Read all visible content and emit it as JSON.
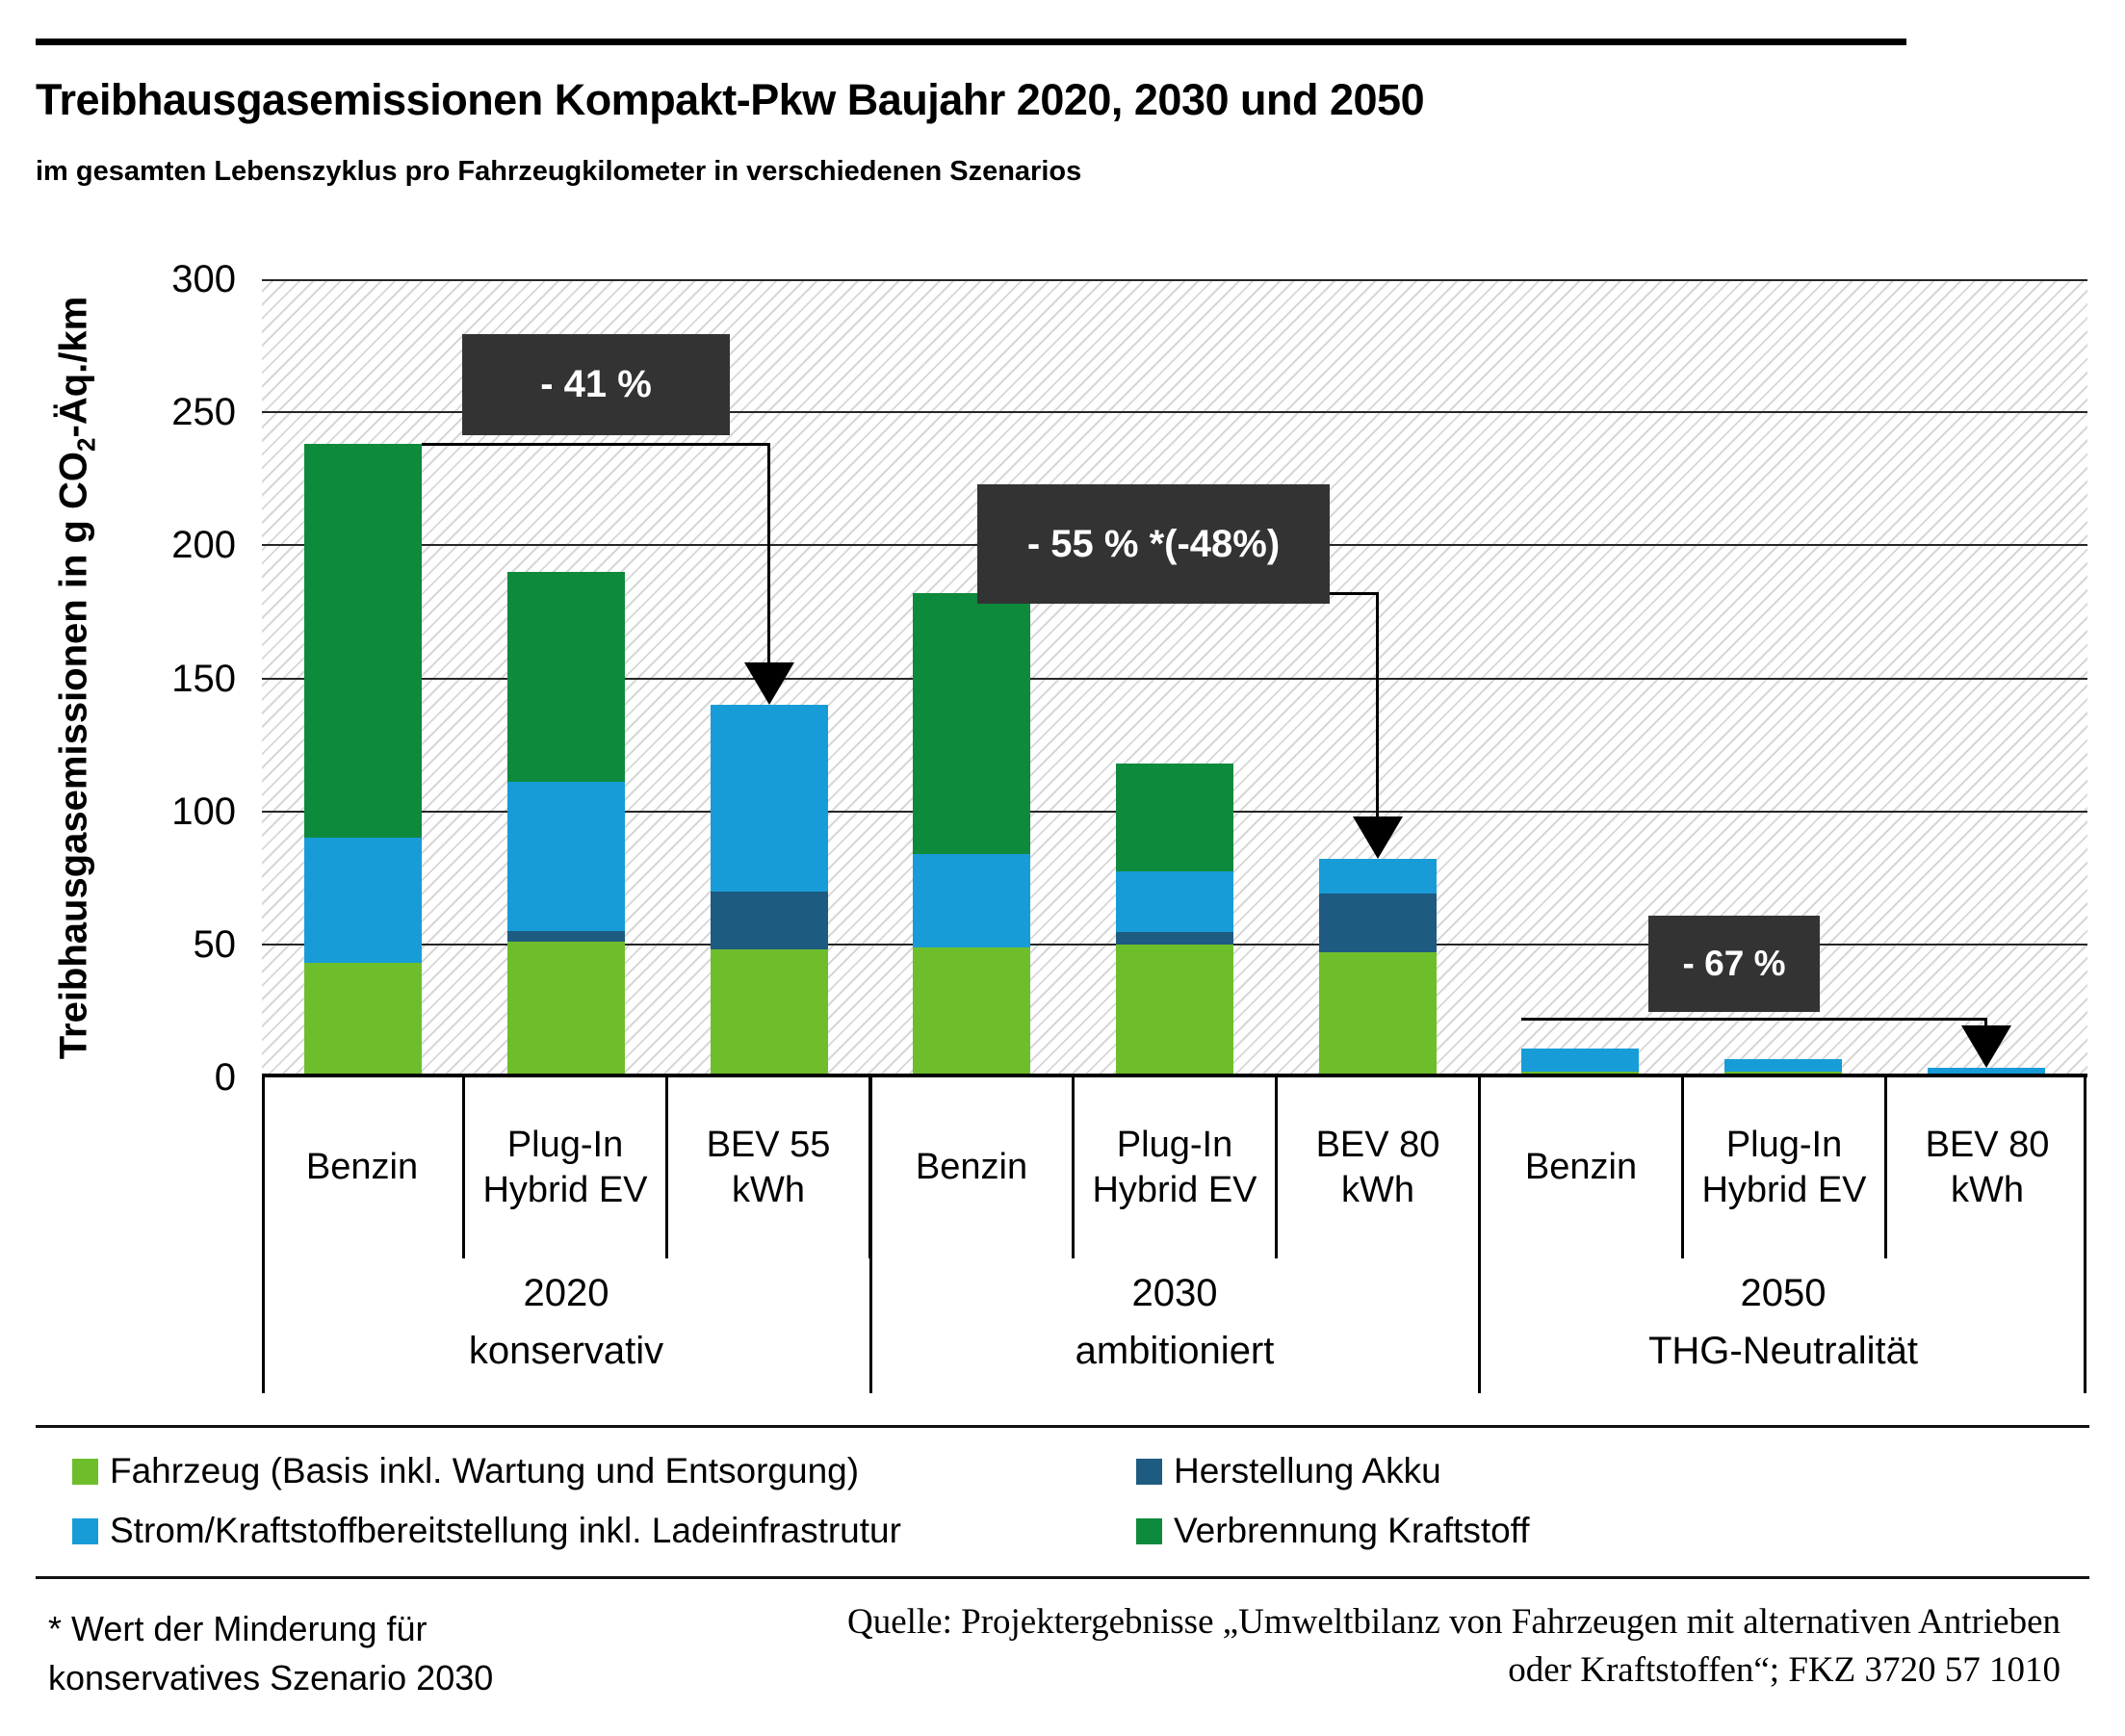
{
  "header": {
    "title": "Treibhausgasemissionen Kompakt-Pkw Baujahr 2020, 2030 und 2050",
    "subtitle": "im gesamten Lebenszyklus pro Fahrzeugkilometer in verschiedenen Szenarios"
  },
  "y_axis": {
    "title_prefix": "Treibhausgasemissionen in g CO",
    "title_sub": "2",
    "title_suffix": "-Äq./km"
  },
  "chart_data": {
    "type": "bar",
    "stacked": true,
    "title": "Treibhausgasemissionen Kompakt-Pkw Baujahr 2020, 2030 und 2050",
    "subtitle": "im gesamten Lebenszyklus pro Fahrzeugkilometer in verschiedenen Szenarios",
    "ylabel": "Treibhausgasemissionen in g CO2-Äq./km",
    "ylim": [
      0,
      300
    ],
    "yticks": [
      0,
      50,
      100,
      150,
      200,
      250,
      300
    ],
    "grid": true,
    "plot_background": "white with light gray diagonal hatch",
    "categories": [
      [
        "Benzin"
      ],
      [
        "Plug-In",
        "Hybrid EV"
      ],
      [
        "BEV 55",
        "kWh"
      ],
      [
        "Benzin"
      ],
      [
        "Plug-In",
        "Hybrid EV"
      ],
      [
        "BEV 80",
        "kWh"
      ],
      [
        "Benzin"
      ],
      [
        "Plug-In",
        "Hybrid EV"
      ],
      [
        "BEV 80",
        "kWh"
      ]
    ],
    "groups": [
      {
        "year": "2020",
        "scenario": "konservativ"
      },
      {
        "year": "2030",
        "scenario": "ambitioniert"
      },
      {
        "year": "2050",
        "scenario": "THG-Neutralität"
      }
    ],
    "series": [
      {
        "name": "Fahrzeug (Basis inkl. Wartung und Entsorgung)",
        "color": "#6ebe2c",
        "values": [
          43,
          51,
          48,
          49,
          50,
          47,
          2,
          2,
          1
        ]
      },
      {
        "name": "Herstellung Akku",
        "color": "#1e5b80",
        "values": [
          0,
          4,
          22,
          0,
          4.5,
          22,
          0,
          0,
          0
        ]
      },
      {
        "name": "Strom/Kraftstoffbereitstellung inkl. Ladeinfrastrutur",
        "color": "#189cd8",
        "values": [
          47,
          56,
          70,
          35,
          23,
          13,
          9,
          5,
          2.5
        ]
      },
      {
        "name": "Verbrennung Kraftstoff",
        "color": "#0e8a3c",
        "values": [
          148,
          79,
          0,
          98,
          40.5,
          0,
          0,
          0,
          0
        ]
      }
    ],
    "bar_totals": [
      238,
      190,
      140,
      182,
      118,
      82,
      11,
      7,
      3.5
    ],
    "annotations": [
      {
        "label": "- 41 %",
        "from_bar": 0,
        "to_bar": 2,
        "line_value": 238,
        "start_edge": "right"
      },
      {
        "label": "- 55 % *(-48%)",
        "from_bar": 3,
        "to_bar": 5,
        "line_value": 182,
        "start_edge": "right"
      },
      {
        "label": "- 67 %",
        "from_bar": 6,
        "to_bar": 8,
        "line_value": 22,
        "start_edge": "left"
      }
    ]
  },
  "legend": {
    "items": [
      {
        "label": "Fahrzeug (Basis inkl. Wartung und Entsorgung)",
        "color": "#6ebe2c"
      },
      {
        "label": "Herstellung Akku",
        "color": "#1e5b80"
      },
      {
        "label": "Strom/Kraftstoffbereitstellung inkl. Ladeinfrastrutur",
        "color": "#189cd8"
      },
      {
        "label": "Verbrennung Kraftstoff",
        "color": "#0e8a3c"
      }
    ]
  },
  "footer": {
    "footnote_line1": " * Wert der Minderung für",
    "footnote_line2": "konservatives Szenario 2030",
    "source_line1": "Quelle: Projektergebnisse „Umweltbilanz von Fahrzeugen mit alternativen Antrieben",
    "source_line2": "oder Kraftstoffen“; FKZ 3720 57 1010"
  },
  "colors": {
    "accent_dark_box": "#333333",
    "gridline": "#262626",
    "hatch_line": "#d7d7d7"
  }
}
